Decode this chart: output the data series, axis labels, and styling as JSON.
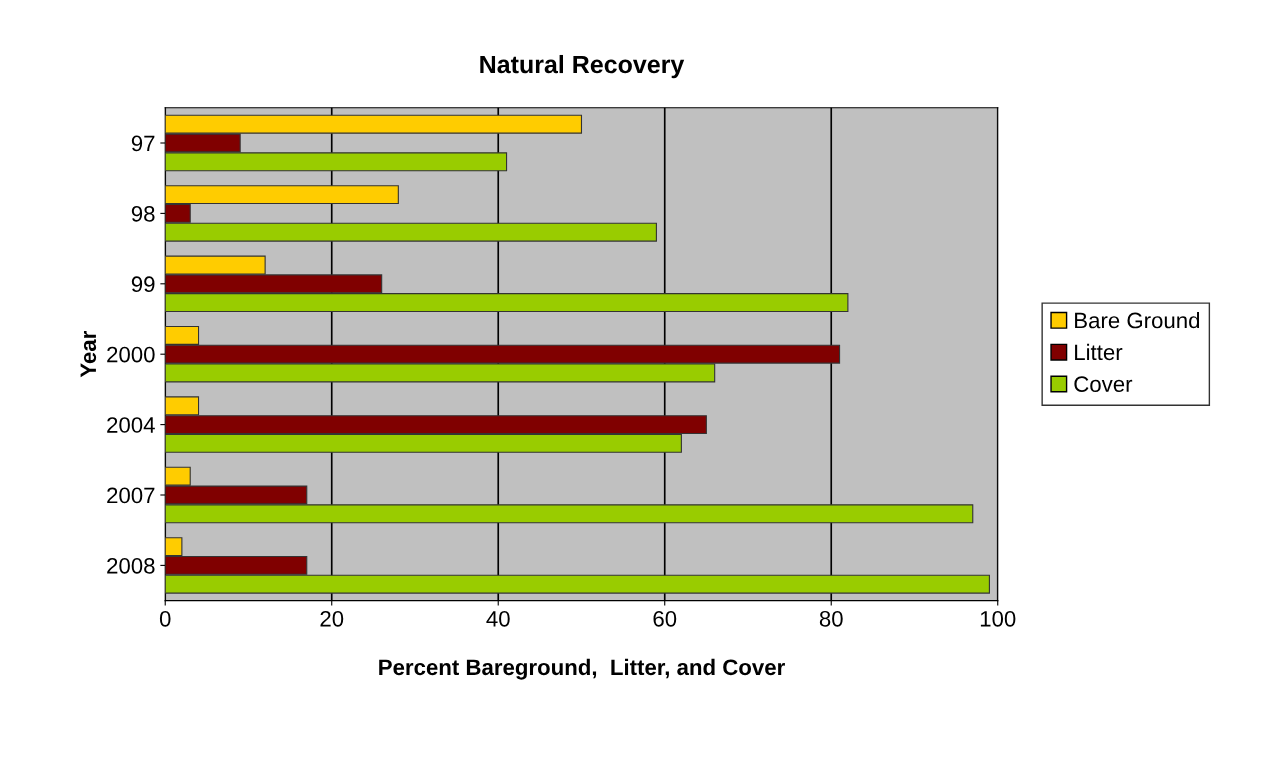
{
  "chart_data": {
    "type": "bar",
    "orientation": "horizontal",
    "title": "Natural Recovery",
    "xlabel": "Percent Bareground,  Litter, and Cover",
    "ylabel": "Year",
    "categories": [
      "97",
      "98",
      "99",
      "2000",
      "2004",
      "2007",
      "2008"
    ],
    "series": [
      {
        "name": "Bare Ground",
        "color": "#ffcc00",
        "values": [
          50,
          28,
          12,
          4,
          4,
          3,
          2
        ]
      },
      {
        "name": "Litter",
        "color": "#800000",
        "values": [
          9,
          3,
          26,
          81,
          65,
          17,
          17
        ]
      },
      {
        "name": "Cover",
        "color": "#99cc00",
        "values": [
          41,
          59,
          82,
          66,
          62,
          97,
          99
        ]
      }
    ],
    "xlim": [
      0,
      100
    ],
    "xticks": [
      0,
      20,
      40,
      60,
      80,
      100
    ],
    "grid": "x",
    "legend": "right"
  }
}
